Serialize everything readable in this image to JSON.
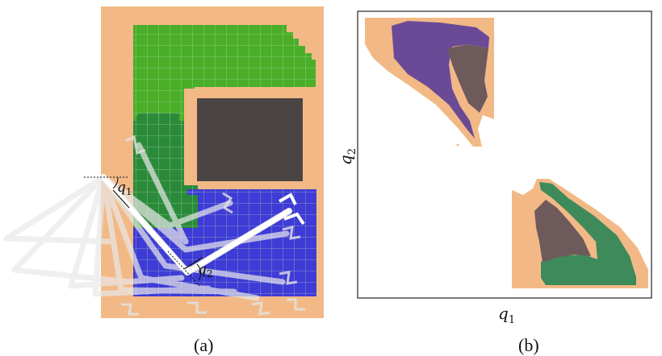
{
  "panel_a": {
    "caption": "(a)",
    "joint1_label": "q",
    "joint1_sub": "1",
    "joint2_label": "q",
    "joint2_sub": "2"
  },
  "panel_b": {
    "caption": "(b)",
    "x_axis_label": "q",
    "x_axis_sub": "1",
    "y_axis_label": "q",
    "y_axis_sub": "2"
  },
  "colors": {
    "free_space": "#f2b987",
    "obstacle_dark": "#4a4544",
    "region_light_green": "#4aae28",
    "region_dark_green": "#2b8a3a",
    "region_blue": "#3e3bd6",
    "cspace_purple": "#6a4a96",
    "cspace_green": "#3e8a5a",
    "cspace_brown": "#6e5a5a",
    "grid_line": "#9be59b",
    "arm_white": "#ffffff"
  }
}
